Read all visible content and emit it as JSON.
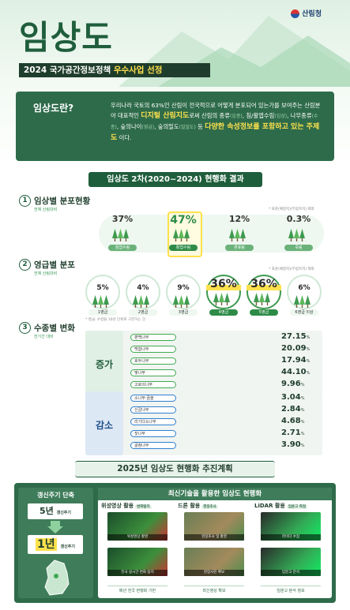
{
  "logo": "산림청",
  "title": "임상도",
  "subtitle": {
    "prefix": "2024 국가공간정보정책",
    "highlight": "우수사업 선정"
  },
  "intro": {
    "heading": "임상도란?",
    "segments": [
      {
        "text": "우리나라 국토의 63%인 산림이 전국적으로 어떻게 분포되어 있는가를 보여주는 산림분야 대표적인 "
      },
      {
        "text": "디지털 산림지도",
        "style": "strong"
      },
      {
        "text": "로써 산림의 종류"
      },
      {
        "text": "(임종)",
        "style": "note"
      },
      {
        "text": ", 침/활엽수림"
      },
      {
        "text": "(임상)",
        "style": "note"
      },
      {
        "text": ", 나무종류"
      },
      {
        "text": "(수종)",
        "style": "note"
      },
      {
        "text": ", 숲의나이"
      },
      {
        "text": "(영급)",
        "style": "note"
      },
      {
        "text": ", 숲의밀도"
      },
      {
        "text": "(밀밀도)",
        "style": "note"
      },
      {
        "text": " 등 "
      },
      {
        "text": "다양한 속성정보를 포함하고 있는 주제도",
        "style": "strong"
      },
      {
        "text": " 이다."
      }
    ]
  },
  "results": {
    "heading": "임상도 2차(2020~2024) 현행화 결과",
    "by_type": {
      "number": "1",
      "title": "임상별 분포현황",
      "basis": "전체 산림대비",
      "note": "* 표준(예정지)(무립목지) 제외",
      "items": [
        {
          "value": "37%",
          "label": "침엽수림"
        },
        {
          "value": "47%",
          "label": "활엽수림",
          "highlight": true
        },
        {
          "value": "12%",
          "label": "혼효림"
        },
        {
          "value": "0.3%",
          "label": "죽림"
        }
      ]
    },
    "by_age": {
      "number": "2",
      "title": "영급별 분포",
      "basis": "전체 산림대비",
      "note": "* 표준(예정지)(무립목지) 제외",
      "footnote": "* 영급: 수령을 10년 단위로 구분하는 것",
      "items": [
        {
          "value": "5%",
          "label": "1영급"
        },
        {
          "value": "4%",
          "label": "2영급"
        },
        {
          "value": "9%",
          "label": "3영급"
        },
        {
          "value": "36%",
          "label": "4영급",
          "highlight": true
        },
        {
          "value": "36%",
          "label": "5영급",
          "highlight": true
        },
        {
          "value": "6%",
          "label": "6영급 이상"
        }
      ]
    },
    "by_species": {
      "number": "3",
      "title": "수종별 변화",
      "basis": "전기간 대비",
      "unit": "%",
      "groups": [
        {
          "label": "증가",
          "color": "#3faa4f",
          "names": [
            "편백나무",
            "백합나무",
            "호두나무",
            "벚나무",
            "고로쇠나무"
          ],
          "values": [
            27.15,
            20.09,
            17.94,
            44.1,
            9.96
          ],
          "value_labels": [
            "27.15",
            "20.09",
            "17.94",
            "44.10",
            "9.96"
          ]
        },
        {
          "label": "감소",
          "color": "#2f7fd0",
          "names": [
            "소나무·곰솔",
            "신갈나무",
            "리기다소나무",
            "잣나무",
            "굴참나무"
          ],
          "values": [
            3.04,
            2.84,
            4.68,
            2.71,
            3.9
          ],
          "value_labels": [
            "3.04",
            "2.84",
            "4.68",
            "2.71",
            "3.90"
          ]
        }
      ]
    }
  },
  "plan": {
    "heading": "2025년 임상도 현행화 추진계획",
    "cycle": {
      "title": "갱신주기 단축",
      "before": {
        "value": "5년",
        "label": "갱신주기"
      },
      "after": {
        "value": "1년",
        "label": "갱신주기"
      }
    },
    "tech": {
      "title": "최신기술을 활용한 임상도 현행화",
      "columns": [
        {
          "name": "위성영상 활용",
          "tag": "변화탐지",
          "captions": [
            "위성영상 촬영",
            "전국 실시간 변화 탐지"
          ],
          "footer": "매년 전국 현행화 기반"
        },
        {
          "name": "드론 활용",
          "tag": "현장조사",
          "captions": [
            "현장조사 및 촬영",
            "현장사진 확보"
          ],
          "footer": "최신영상 확보"
        },
        {
          "name": "LiDAR 활용",
          "tag": "임분고 측정",
          "captions": [
            "라이다 수집",
            "임분고 분석"
          ],
          "footer": "임분고 분석 정보"
        }
      ]
    }
  }
}
